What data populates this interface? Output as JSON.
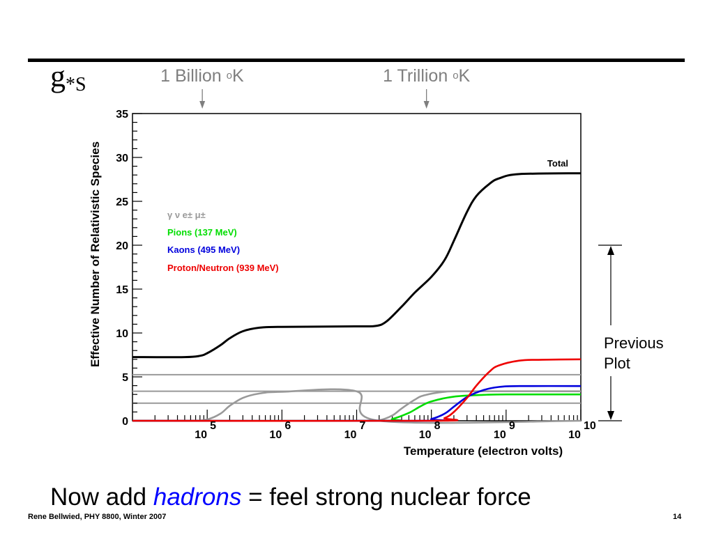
{
  "slide": {
    "symbol_main": "g",
    "symbol_sub": "*S",
    "title": "Now add ",
    "title_emphasis": "hadrons",
    "title_rest": " = feel strong nuclear force",
    "footer_left": "Rene Bellwied, PHY 8800, Winter 2007",
    "page_number": "14"
  },
  "temperature_markers": [
    {
      "text": "1 Billion ",
      "sup": "o",
      "unit": "K",
      "x_value": 86000
    },
    {
      "text": "1 Trillion ",
      "sup": "o",
      "unit": "K",
      "x_value": 86000000
    }
  ],
  "previous_plot": {
    "label_line1": "Previous",
    "label_line2": "Plot",
    "y_range": [
      0,
      20
    ]
  },
  "colors": {
    "total": "#000000",
    "photons_leptons": "#999999",
    "pions": "#00dd00",
    "kaons": "#0000dd",
    "nucleons": "#ee0000",
    "marker_arrows": "#7f7f7f",
    "title_emphasis": "#0000ff"
  },
  "chart_data": {
    "type": "line",
    "xscale": "log",
    "xlim": [
      10000,
      10000000000
    ],
    "ylim": [
      0,
      35
    ],
    "xlabel": "Temperature (electron volts)",
    "ylabel": "Effective Number of Relativistic Species",
    "x_tick_labels": [
      {
        "base": "10",
        "exp": "5",
        "value": 100000
      },
      {
        "base": "10",
        "exp": "6",
        "value": 1000000
      },
      {
        "base": "10",
        "exp": "7",
        "value": 10000000
      },
      {
        "base": "10",
        "exp": "8",
        "value": 100000000
      },
      {
        "base": "10",
        "exp": "9",
        "value": 1000000000
      },
      {
        "base": "10",
        "exp": "10",
        "value": 10000000000
      }
    ],
    "y_ticks": [
      0,
      5,
      10,
      15,
      20,
      25,
      30,
      35
    ],
    "horizontal_lines": [
      5.25,
      3.36,
      2
    ],
    "legend": [
      {
        "text": "γ ν e± μ±",
        "color_key": "photons_leptons"
      },
      {
        "text": "Pions (137 MeV)",
        "color_key": "pions"
      },
      {
        "text": "Kaons (495 MeV)",
        "color_key": "kaons"
      },
      {
        "text": "Proton/Neutron (939 MeV)",
        "color_key": "nucleons"
      }
    ],
    "series": [
      {
        "name": "Total",
        "color_key": "total",
        "points": [
          [
            10000,
            7.25
          ],
          [
            50000,
            7.25
          ],
          [
            80000,
            7.4
          ],
          [
            100000,
            7.7
          ],
          [
            150000,
            8.6
          ],
          [
            200000,
            9.4
          ],
          [
            300000,
            10.2
          ],
          [
            500000,
            10.6
          ],
          [
            1000000,
            10.7
          ],
          [
            10000000,
            10.75
          ],
          [
            18000000,
            10.8
          ],
          [
            25000000,
            11.3
          ],
          [
            40000000,
            13
          ],
          [
            60000000,
            14.6
          ],
          [
            100000000,
            16.4
          ],
          [
            150000000,
            18.3
          ],
          [
            200000000,
            20.5
          ],
          [
            300000000,
            23.8
          ],
          [
            400000000,
            25.6
          ],
          [
            600000000,
            27
          ],
          [
            800000000,
            27.6
          ],
          [
            1500000000,
            28.1
          ],
          [
            10000000000,
            28.2
          ]
        ]
      },
      {
        "name": "",
        "color_key": "photons_leptons",
        "points": [
          [
            10000,
            0
          ],
          [
            60000,
            0
          ],
          [
            100000,
            0.15
          ],
          [
            150000,
            0.8
          ],
          [
            200000,
            1.7
          ],
          [
            300000,
            2.6
          ],
          [
            500000,
            3.1
          ],
          [
            1000000,
            3.3
          ],
          [
            10000000,
            3.35
          ],
          [
            20000000,
            0
          ],
          [
            10000000000,
            0
          ]
        ]
      },
      {
        "name": "",
        "color_key": "photons_leptons",
        "points": [
          [
            14000000,
            0
          ],
          [
            20000000,
            0.05
          ],
          [
            30000000,
            0.6
          ],
          [
            40000000,
            1.4
          ],
          [
            60000000,
            2.4
          ],
          [
            80000000,
            2.9
          ],
          [
            150000000,
            3.3
          ],
          [
            300000000,
            3.36
          ],
          [
            10000000000,
            3.36
          ]
        ]
      },
      {
        "name": "",
        "color_key": "pions",
        "points": [
          [
            10000,
            0
          ],
          [
            20000000,
            0
          ],
          [
            30000000,
            0.2
          ],
          [
            50000000,
            0.9
          ],
          [
            70000000,
            1.6
          ],
          [
            100000000,
            2.2
          ],
          [
            200000000,
            2.75
          ],
          [
            500000000,
            2.95
          ],
          [
            1000000000,
            3
          ],
          [
            10000000000,
            3
          ]
        ]
      },
      {
        "name": "",
        "color_key": "kaons",
        "points": [
          [
            10000,
            0
          ],
          [
            70000000,
            0
          ],
          [
            100000000,
            0.2
          ],
          [
            150000000,
            0.8
          ],
          [
            200000000,
            1.6
          ],
          [
            300000000,
            2.7
          ],
          [
            500000000,
            3.5
          ],
          [
            800000000,
            3.85
          ],
          [
            1500000000,
            3.95
          ],
          [
            10000000000,
            3.95
          ]
        ]
      },
      {
        "name": "",
        "color_key": "nucleons",
        "points": [
          [
            10000,
            0
          ],
          [
            100000000,
            0
          ],
          [
            150000000,
            0.3
          ],
          [
            200000000,
            1
          ],
          [
            300000000,
            2.6
          ],
          [
            400000000,
            4
          ],
          [
            600000000,
            5.6
          ],
          [
            800000000,
            6.3
          ],
          [
            1500000000,
            6.85
          ],
          [
            3000000000,
            6.95
          ],
          [
            10000000000,
            7
          ]
        ]
      }
    ]
  }
}
